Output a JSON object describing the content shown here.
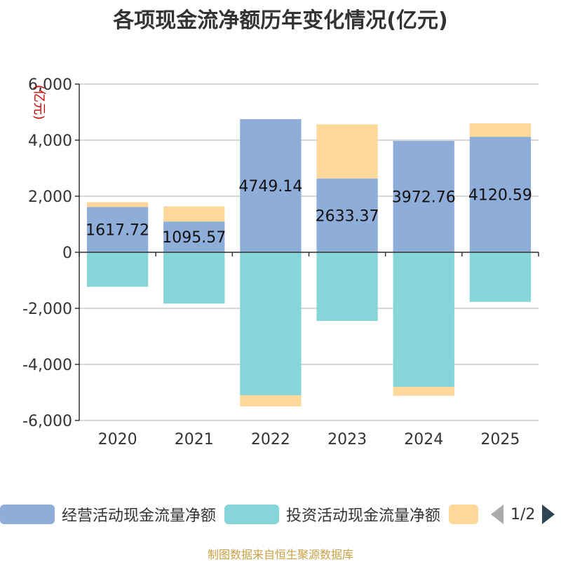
{
  "title": "各项现金流净额历年变化情况(亿元)",
  "source": "制图数据来自恒生聚源数据库",
  "pager": "1/2",
  "colors": {
    "operating": "#8eadd9",
    "investing": "#86d5d9",
    "financing": "#fdd89a",
    "grid": "#cccccc",
    "axis": "#333333",
    "unit": "#cc0000"
  },
  "chart_data": {
    "type": "bar",
    "stacked": true,
    "title": "各项现金流净额历年变化情况(亿元)",
    "ylabel": "(亿元)",
    "ylim": [
      -6000,
      6000
    ],
    "yticks": [
      -6000,
      -4000,
      -2000,
      0,
      2000,
      4000,
      6000
    ],
    "ytick_labels": [
      "-6,000",
      "-4,000",
      "-2,000",
      "0",
      "2,000",
      "4,000",
      "6,000"
    ],
    "grid": true,
    "legend_position": "bottom",
    "categories": [
      "2020",
      "2021",
      "2022",
      "2023",
      "2024",
      "2025"
    ],
    "series": [
      {
        "name": "经营活动现金流量净额",
        "values": [
          1617.72,
          1095.57,
          4749.14,
          2633.37,
          3972.76,
          4120.59
        ],
        "labels": [
          "1617.72",
          "1095.57",
          "4749.14",
          "2633.37",
          "3972.76",
          "4120.59"
        ]
      },
      {
        "name": "投资活动现金流量净额",
        "values": [
          -1230,
          -1830,
          -5100,
          -2450,
          -4800,
          -1770
        ]
      },
      {
        "name": "",
        "values": [
          170,
          540,
          -400,
          1930,
          -320,
          480
        ]
      }
    ]
  }
}
